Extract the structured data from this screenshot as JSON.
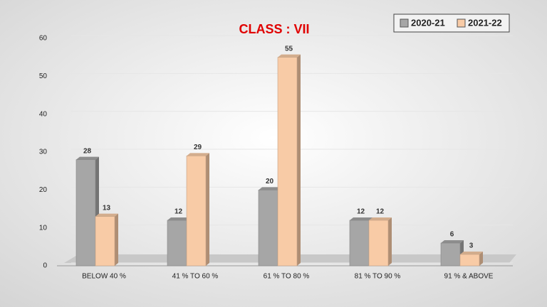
{
  "chart_data": {
    "type": "bar",
    "title": "CLASS : VII",
    "categories": [
      "BELOW 40 %",
      "41 % TO 60 %",
      "61 % TO 80 %",
      "81 % TO 90 %",
      "91 % & ABOVE"
    ],
    "series": [
      {
        "name": "2020-21",
        "color": "#a6a6a6",
        "values": [
          28,
          12,
          20,
          12,
          6
        ]
      },
      {
        "name": "2021-22",
        "color": "#f8cba6",
        "values": [
          13,
          29,
          55,
          12,
          3
        ]
      }
    ],
    "ylim": [
      0,
      60
    ],
    "yticks": [
      0,
      10,
      20,
      30,
      40,
      50,
      60
    ],
    "grid": true,
    "legend": "top-right"
  }
}
